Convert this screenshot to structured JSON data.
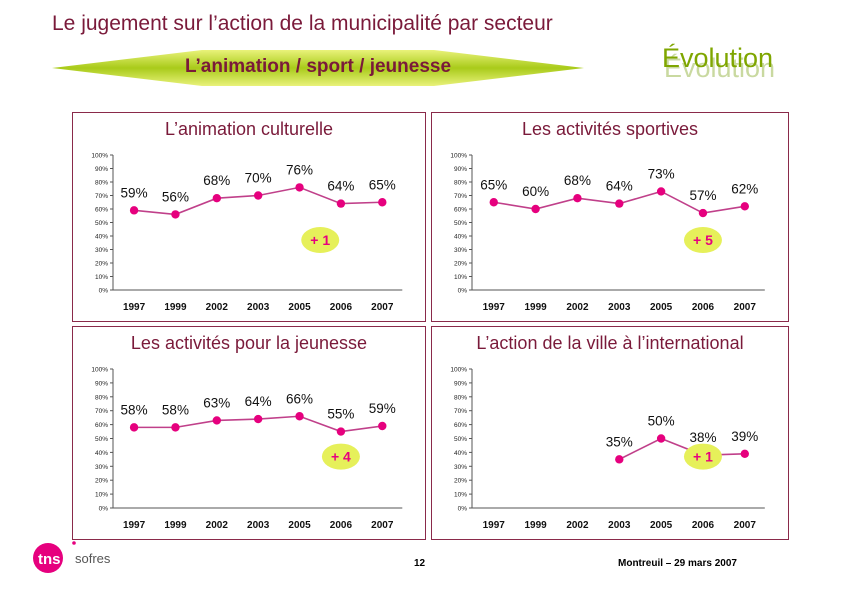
{
  "header": {
    "title": "Le jugement sur l’action de la municipalité par secteur",
    "banner": "L’animation / sport / jeunesse",
    "evolution": "Évolution"
  },
  "footer": {
    "page": "12",
    "date": "Montreuil – 29 mars 2007",
    "logo_main": "tns",
    "logo_sub": "sofres"
  },
  "colors": {
    "accent": "#7a1a3a",
    "marker": "#e6007e",
    "line": "#c0408a",
    "badge": "#e6f05a",
    "banner": "#9fc400",
    "evolution": "#7fa600"
  },
  "chart_data": [
    {
      "type": "line",
      "title": "L’animation culturelle",
      "categories": [
        "1997",
        "1999",
        "2002",
        "2003",
        "2005",
        "2006",
        "2007"
      ],
      "values": [
        59,
        56,
        68,
        70,
        76,
        64,
        65
      ],
      "labels": [
        "59%",
        "56%",
        "68%",
        "70%",
        "76%",
        "64%",
        "65%"
      ],
      "yticks": [
        "0%",
        "10%",
        "20%",
        "30%",
        "40%",
        "50%",
        "60%",
        "70%",
        "80%",
        "90%",
        "100%"
      ],
      "ylim": [
        0,
        100
      ],
      "badge": "+ 1",
      "badge_at": 4.5
    },
    {
      "type": "line",
      "title": "Les activités sportives",
      "categories": [
        "1997",
        "1999",
        "2002",
        "2003",
        "2005",
        "2006",
        "2007"
      ],
      "values": [
        65,
        60,
        68,
        64,
        73,
        57,
        62
      ],
      "labels": [
        "65%",
        "60%",
        "68%",
        "64%",
        "73%",
        "57%",
        "62%"
      ],
      "yticks": [
        "0%",
        "10%",
        "20%",
        "30%",
        "40%",
        "50%",
        "60%",
        "70%",
        "80%",
        "90%",
        "100%"
      ],
      "ylim": [
        0,
        100
      ],
      "badge": "+ 5",
      "badge_at": 5
    },
    {
      "type": "line",
      "title": "Les activités pour la jeunesse",
      "categories": [
        "1997",
        "1999",
        "2002",
        "2003",
        "2005",
        "2006",
        "2007"
      ],
      "values": [
        58,
        58,
        63,
        64,
        66,
        55,
        59
      ],
      "labels": [
        "58%",
        "58%",
        "63%",
        "64%",
        "66%",
        "55%",
        "59%"
      ],
      "yticks": [
        "0%",
        "10%",
        "20%",
        "30%",
        "40%",
        "50%",
        "60%",
        "70%",
        "80%",
        "90%",
        "100%"
      ],
      "ylim": [
        0,
        100
      ],
      "badge": "+ 4",
      "badge_at": 5
    },
    {
      "type": "line",
      "title": "L’action de la ville à l’international",
      "categories": [
        "1997",
        "1999",
        "2002",
        "2003",
        "2005",
        "2006",
        "2007"
      ],
      "values": [
        null,
        null,
        null,
        35,
        50,
        38,
        39
      ],
      "labels": [
        "",
        "",
        "",
        "35%",
        "50%",
        "38%",
        "39%"
      ],
      "yticks": [
        "0%",
        "10%",
        "20%",
        "30%",
        "40%",
        "50%",
        "60%",
        "70%",
        "80%",
        "90%",
        "100%"
      ],
      "ylim": [
        0,
        100
      ],
      "badge": "+ 1",
      "badge_at": 5
    }
  ]
}
